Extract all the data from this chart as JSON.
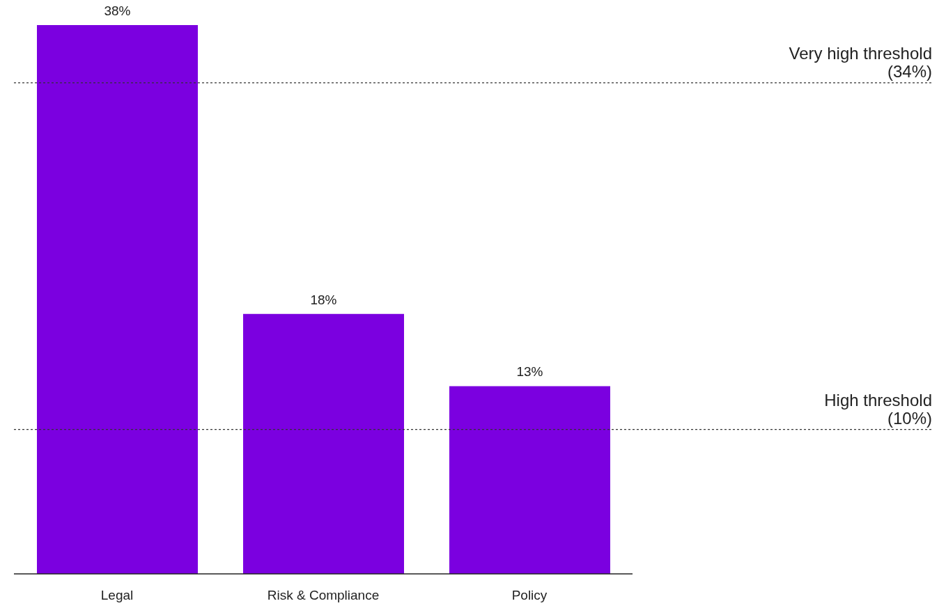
{
  "chart_data": {
    "type": "bar",
    "categories": [
      "Legal",
      "Risk & Compliance",
      "Policy"
    ],
    "values": [
      38,
      18,
      13
    ],
    "color": "#7b00e0",
    "value_labels": [
      "38%",
      "18%",
      "13%"
    ],
    "ref_lines": [
      {
        "axis": "y",
        "value": 34,
        "label": "Very high threshold (34%)",
        "color": "#333333",
        "line_style": "dotted"
      },
      {
        "axis": "y",
        "value": 10,
        "label": "High threshold (10%)",
        "color": "#333333",
        "line_style": "dotted"
      }
    ]
  }
}
